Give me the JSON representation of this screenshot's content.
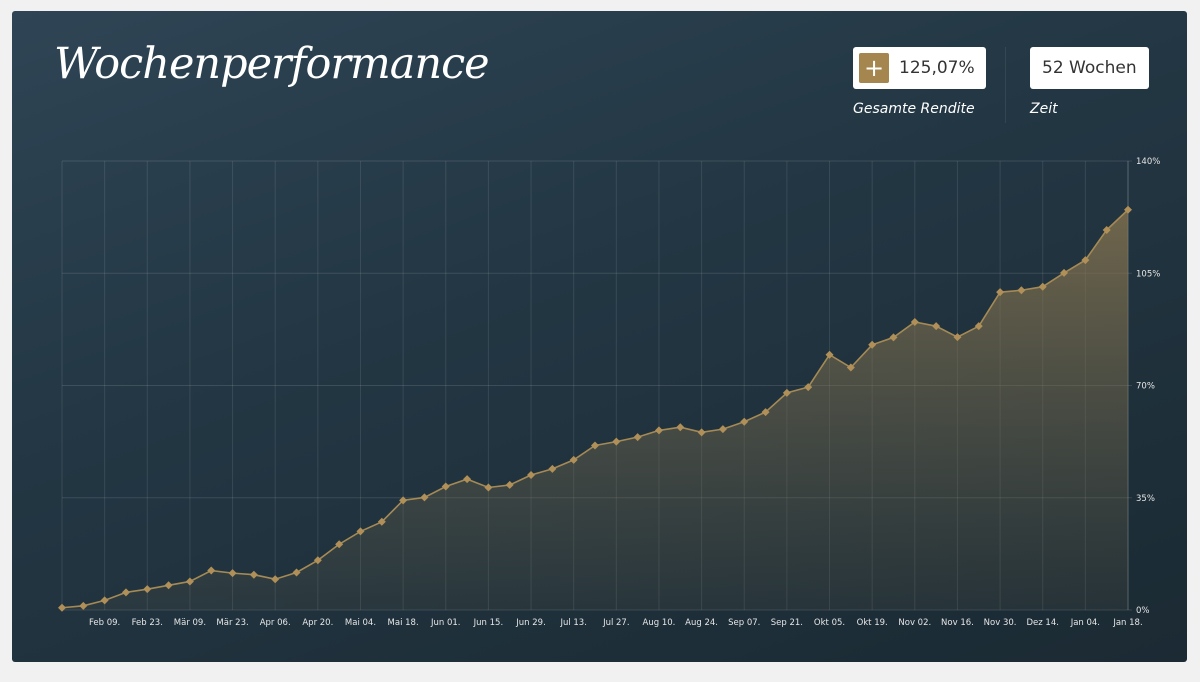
{
  "header": {
    "title": "Wochenperformance",
    "return_value": "125,07%",
    "return_caption": "Gesamte Rendite",
    "period_value": "52 Wochen",
    "period_caption": "Zeit",
    "plus_icon": "plus-icon"
  },
  "colors": {
    "accent": "#a5864e",
    "line": "#a68a55",
    "background_top": "#2f4555",
    "background_bottom": "#1b2a33"
  },
  "chart_data": {
    "type": "area",
    "title": "",
    "xlabel": "",
    "ylabel": "",
    "ylim": [
      0,
      140
    ],
    "y_ticks": [
      0,
      35,
      70,
      105,
      140
    ],
    "y_tick_labels": [
      "0%",
      "35%",
      "70%",
      "105%",
      "140%"
    ],
    "grid": true,
    "x_tick_labels": [
      "Feb 09.",
      "Feb 23.",
      "Mär 09.",
      "Mär 23.",
      "Apr 06.",
      "Apr 20.",
      "Mai 04.",
      "Mai 18.",
      "Jun 01.",
      "Jun 15.",
      "Jun 29.",
      "Jul 13.",
      "Jul 27.",
      "Aug 10.",
      "Aug 24.",
      "Sep 07.",
      "Sep 21.",
      "Okt 05.",
      "Okt 19.",
      "Nov 02.",
      "Nov 16.",
      "Nov 30.",
      "Dez 14.",
      "Jan 04.",
      "Jan 18."
    ],
    "series": [
      {
        "values": [
          0.7,
          1.3,
          3,
          5.5,
          6.5,
          7.7,
          8.9,
          12.3,
          11.5,
          11,
          9.6,
          11.7,
          15.5,
          20.5,
          24.5,
          27.5,
          34.2,
          35.1,
          38.5,
          40.8,
          38.2,
          39,
          42.1,
          44,
          46.8,
          51.3,
          52.5,
          53.9,
          56,
          57,
          55.4,
          56.4,
          58.7,
          61.7,
          67.7,
          69.5,
          79.6,
          75.6,
          82.7,
          85,
          89.8,
          88.5,
          85.1,
          88.5,
          99.1,
          99.7,
          100.8,
          105.1,
          109.1,
          118.5,
          124.8
        ]
      }
    ]
  }
}
